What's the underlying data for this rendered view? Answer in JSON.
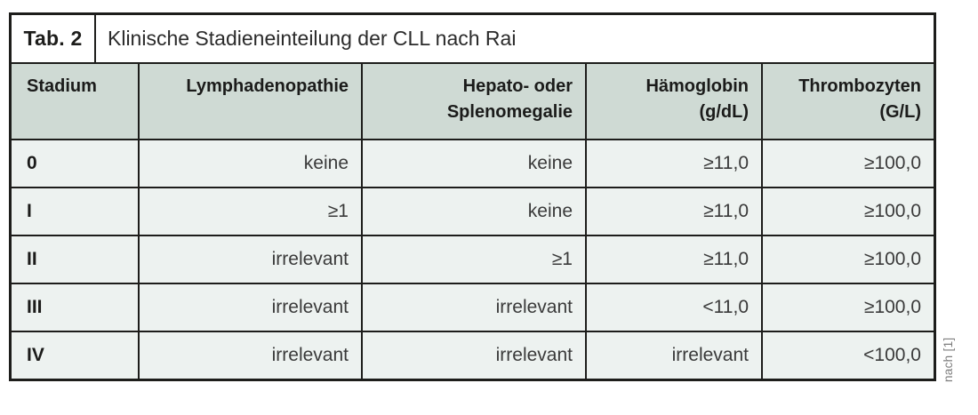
{
  "colors": {
    "header_bg": "#cfdad4",
    "row_bg": "#edf2f0",
    "border": "#1d1d1b",
    "title_bg": "#ffffff",
    "source_note_text": "#7d7d7d"
  },
  "table": {
    "tag_label": "Tab. 2",
    "title": "Klinische Stadieneinteilung der CLL nach Rai",
    "header": {
      "stadium": "Stadium",
      "lymphadenopathie": "Lymphadenopathie",
      "hepato_line1": "Hepato- oder",
      "hepato_line2": "Splenomegalie",
      "haemoglobin_line1": "Hämoglobin",
      "haemoglobin_line2": "(g/dL)",
      "thrombozyten_line1": "Thrombozyten",
      "thrombozyten_line2": "(G/L)"
    },
    "rows": [
      {
        "stadium": "0",
        "lymphadenopathie": "keine",
        "hepato_splenomegalie": "keine",
        "haemoglobin": "≥11,0",
        "thrombozyten": "≥100,0"
      },
      {
        "stadium": "I",
        "lymphadenopathie": "≥1",
        "hepato_splenomegalie": "keine",
        "haemoglobin": "≥11,0",
        "thrombozyten": "≥100,0"
      },
      {
        "stadium": "II",
        "lymphadenopathie": "irrelevant",
        "hepato_splenomegalie": "≥1",
        "haemoglobin": "≥11,0",
        "thrombozyten": "≥100,0"
      },
      {
        "stadium": "III",
        "lymphadenopathie": "irrelevant",
        "hepato_splenomegalie": "irrelevant",
        "haemoglobin": "<11,0",
        "thrombozyten": "≥100,0"
      },
      {
        "stadium": "IV",
        "lymphadenopathie": "irrelevant",
        "hepato_splenomegalie": "irrelevant",
        "haemoglobin": "irrelevant",
        "thrombozyten": "<100,0"
      }
    ],
    "source_note": "nach [1]"
  }
}
